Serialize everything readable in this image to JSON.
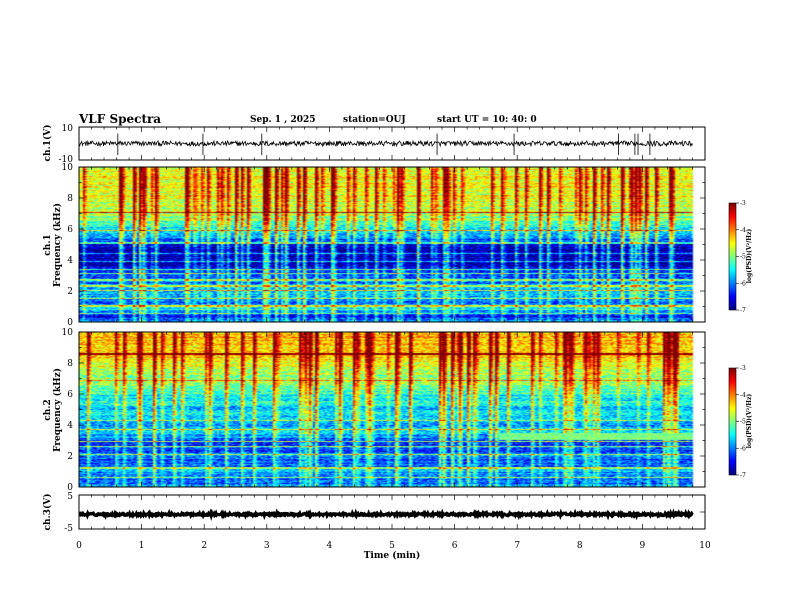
{
  "header": {
    "title": "VLF Spectra",
    "date": "Sep. 1 , 2025",
    "station": "station=OUJ",
    "start_ut": "start UT =  10: 40: 0"
  },
  "colors": {
    "frame": "#000000",
    "background": "#ffffff",
    "trace": "#000000"
  },
  "chart_data": [
    {
      "type": "line",
      "name": "ch1-waveform",
      "ylabel": "ch.1(V)",
      "xlim": [
        0,
        10
      ],
      "ylim": [
        -10,
        10
      ],
      "yticks": [
        "10",
        "-10"
      ],
      "data_extent_min": 9.8,
      "baseline": 0,
      "noise_amplitude": 1.5,
      "spike_times_min": [
        0.62,
        1.98,
        2.92,
        5.72,
        6.95,
        8.62,
        8.88,
        8.93,
        9.12
      ]
    },
    {
      "type": "heatmap",
      "name": "ch1-spectrogram",
      "ylabel_line1": "ch.1",
      "ylabel_line2": "Frequency (kHz)",
      "xlim": [
        0,
        10
      ],
      "ylim": [
        0,
        10
      ],
      "yticks": [
        "10",
        "8",
        "6",
        "4",
        "2",
        "0"
      ],
      "data_extent_min": 9.8,
      "colorbar": {
        "min": -7,
        "max": -3,
        "ticks": [
          "-3",
          "-4",
          "-5",
          "-6",
          "-7"
        ],
        "label": "log(PSD)(V²/Hz)"
      },
      "band_profile_khz": [
        [
          0,
          -6.2
        ],
        [
          0.4,
          -6.4
        ],
        [
          0.8,
          -5.6
        ],
        [
          1.2,
          -6.0
        ],
        [
          1.8,
          -5.8
        ],
        [
          2.3,
          -5.9
        ],
        [
          2.8,
          -6.1
        ],
        [
          3.2,
          -6.5
        ],
        [
          3.6,
          -6.7
        ],
        [
          4.2,
          -6.9
        ],
        [
          4.8,
          -6.8
        ],
        [
          5.2,
          -6.3
        ],
        [
          5.8,
          -5.7
        ],
        [
          6.4,
          -5.2
        ],
        [
          7.0,
          -4.8
        ],
        [
          7.6,
          -4.7
        ],
        [
          8.5,
          -4.6
        ],
        [
          9.3,
          -4.5
        ],
        [
          10,
          -4.6
        ]
      ],
      "burst_density_per_min": 9,
      "harmonic_lines_khz": [
        0.5,
        1.0,
        1.5,
        2.0,
        2.3,
        2.7,
        3.1,
        3.4,
        3.9,
        4.4,
        5.1,
        5.9,
        7.1
      ],
      "event_segments": []
    },
    {
      "type": "heatmap",
      "name": "ch2-spectrogram",
      "ylabel_line1": "ch.2",
      "ylabel_line2": "Frequency (kHz)",
      "xlim": [
        0,
        10
      ],
      "ylim": [
        0,
        10
      ],
      "yticks": [
        "10",
        "8",
        "6",
        "4",
        "2",
        "0"
      ],
      "data_extent_min": 9.8,
      "colorbar": {
        "min": -7,
        "max": -3,
        "ticks": [
          "-3",
          "-4",
          "-5",
          "-6",
          "-7"
        ],
        "label": "log(PSD)(V²/Hz)"
      },
      "band_profile_khz": [
        [
          0,
          -6.0
        ],
        [
          0.5,
          -6.3
        ],
        [
          1.0,
          -5.9
        ],
        [
          1.6,
          -6.2
        ],
        [
          2.2,
          -6.1
        ],
        [
          2.8,
          -6.3
        ],
        [
          3.4,
          -5.8
        ],
        [
          4.0,
          -5.9
        ],
        [
          4.8,
          -5.7
        ],
        [
          5.6,
          -5.5
        ],
        [
          6.4,
          -5.2
        ],
        [
          7.0,
          -4.9
        ],
        [
          7.8,
          -4.6
        ],
        [
          8.6,
          -4.3
        ],
        [
          9.4,
          -4.2
        ],
        [
          10,
          -4.3
        ]
      ],
      "burst_density_per_min": 7,
      "harmonic_lines_khz": [
        0.6,
        1.2,
        2.1,
        2.6,
        2.9,
        3.7,
        4.3,
        6.9,
        8.6
      ],
      "event_segments": [
        {
          "t_start": 6.7,
          "t_end": 9.8,
          "f_lo": 3.0,
          "f_hi": 3.5,
          "level": -5.0
        }
      ]
    },
    {
      "type": "line",
      "name": "ch3-waveform",
      "ylabel": "ch.3(V)",
      "xlim": [
        0,
        10
      ],
      "ylim": [
        -5,
        5
      ],
      "yticks": [
        "5",
        "0",
        "-5"
      ],
      "data_extent_min": 9.8,
      "baseline": -0.7,
      "noise_amplitude": 0.35,
      "spike_times_min": []
    }
  ],
  "xaxis": {
    "label": "Time (min)",
    "ticks": [
      "0",
      "1",
      "2",
      "3",
      "4",
      "5",
      "6",
      "7",
      "8",
      "9",
      "10"
    ]
  }
}
